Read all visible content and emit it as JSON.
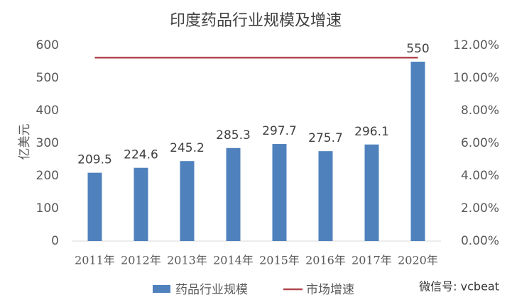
{
  "chart_data": {
    "type": "bar",
    "title": "印度药品行业规模及增速",
    "y_label": "亿美元",
    "categories": [
      "2011年",
      "2012年",
      "2013年",
      "2014年",
      "2015年",
      "2016年",
      "2017年",
      "2020年"
    ],
    "series": [
      {
        "name": "药品行业规模",
        "color": "#4f81bd",
        "type": "bar",
        "values": [
          209.5,
          224.6,
          245.2,
          285.3,
          297.7,
          275.7,
          296.1,
          550
        ]
      },
      {
        "name": "市场增速",
        "color": "#b0474f",
        "type": "line",
        "axis": "y2",
        "values": [
          11.25,
          11.25,
          11.25,
          11.25,
          11.25,
          11.25,
          11.25,
          11.25
        ]
      }
    ],
    "ylim": [
      0,
      600
    ],
    "yticks": [
      0,
      100,
      200,
      300,
      400,
      500,
      600
    ],
    "y2lim": [
      0,
      12
    ],
    "y2ticks": [
      {
        "value": 0,
        "label": "0.00%"
      },
      {
        "value": 2,
        "label": "2.00%"
      },
      {
        "value": 4,
        "label": "4.00%"
      },
      {
        "value": 6,
        "label": "6.00%"
      },
      {
        "value": 8,
        "label": "8.00%"
      },
      {
        "value": 10,
        "label": "10.00%"
      },
      {
        "value": 12,
        "label": "12.00%"
      }
    ],
    "legend": "bottom",
    "watermark": "微信号: vcbeat"
  }
}
